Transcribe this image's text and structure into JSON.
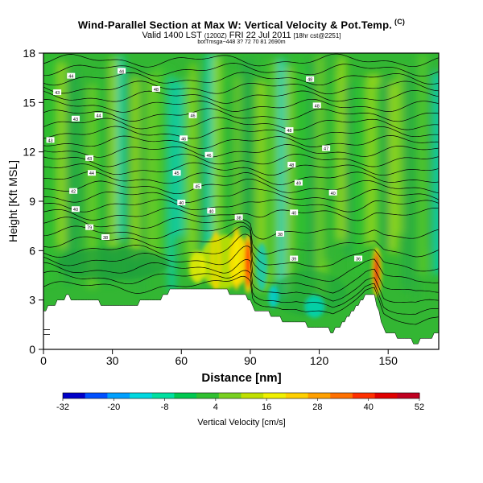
{
  "header": {
    "title": "Wind-Parallel Section at Max W: Vertical Velocity & Pot.Temp.",
    "copyright": "(C)",
    "valid_line": "Valid 1400 LST",
    "valid_small1": "(1200Z)",
    "valid_date": "FRI 22 Jul 2011",
    "valid_small2": "[18hr cst@2251]",
    "subline": "botTmsga~448 3? 72 70 81 2690m"
  },
  "chart_data": {
    "type": "heatmap",
    "title": "Wind-Parallel Section at Max W: Vertical Velocity & Pot.Temp.",
    "xlabel": "Distance [nm]",
    "ylabel": "Height [Kft MSL]",
    "xlim": [
      0,
      172
    ],
    "ylim": [
      0,
      18
    ],
    "x_ticks": [
      0,
      30,
      60,
      90,
      120,
      150
    ],
    "y_ticks": [
      0,
      3,
      6,
      9,
      12,
      15,
      18
    ],
    "colorbar": {
      "label": "Vertical Velocity [cm/s]",
      "tick_values": [
        -32,
        -20,
        -8,
        4,
        16,
        28,
        40,
        52
      ],
      "colors": [
        "#0000c8",
        "#0050ff",
        "#00a0ff",
        "#00d8e0",
        "#00e0a0",
        "#00c850",
        "#30c030",
        "#78d020",
        "#c0e000",
        "#f0f000",
        "#ffd000",
        "#ffa000",
        "#ff7000",
        "#ff3000",
        "#e00000",
        "#c00020"
      ]
    },
    "terrain_height": [
      [
        0,
        2.4
      ],
      [
        5,
        2.8
      ],
      [
        10,
        3.2
      ],
      [
        20,
        3.0
      ],
      [
        30,
        2.6
      ],
      [
        40,
        2.8
      ],
      [
        50,
        3.0
      ],
      [
        56,
        3.6
      ],
      [
        60,
        3.5
      ],
      [
        70,
        3.5
      ],
      [
        80,
        3.5
      ],
      [
        88,
        3.4
      ],
      [
        92,
        2.4
      ],
      [
        98,
        2.2
      ],
      [
        104,
        1.8
      ],
      [
        110,
        1.8
      ],
      [
        114,
        1.5
      ],
      [
        120,
        1.4
      ],
      [
        126,
        1.1
      ],
      [
        130,
        1.6
      ],
      [
        136,
        2.6
      ],
      [
        140,
        3.3
      ],
      [
        144,
        3.3
      ],
      [
        148,
        1.2
      ],
      [
        154,
        0.8
      ],
      [
        162,
        0.4
      ],
      [
        168,
        0.8
      ],
      [
        172,
        0.9
      ]
    ],
    "updraft_cores": [
      {
        "x": 89,
        "z_bottom": 3.4,
        "z_top": 7.0,
        "w": 40
      },
      {
        "x": 145,
        "z_bottom": 3.2,
        "z_top": 6.2,
        "w": 50
      },
      {
        "x": 84,
        "z_bottom": 3.6,
        "z_top": 7.4,
        "w": 16
      },
      {
        "x": 75,
        "z_bottom": 3.6,
        "z_top": 7.2,
        "w": 12
      }
    ],
    "contour_labels": [
      {
        "x": 34,
        "z": 16.9,
        "text": "44"
      },
      {
        "x": 12,
        "z": 16.6,
        "text": "44"
      },
      {
        "x": 6,
        "z": 15.6,
        "text": "43"
      },
      {
        "x": 49,
        "z": 15.8,
        "text": "48"
      },
      {
        "x": 24,
        "z": 14.2,
        "text": "44"
      },
      {
        "x": 14,
        "z": 14.0,
        "text": "43"
      },
      {
        "x": 65,
        "z": 14.2,
        "text": "46"
      },
      {
        "x": 116,
        "z": 16.4,
        "text": "48"
      },
      {
        "x": 119,
        "z": 14.8,
        "text": "48"
      },
      {
        "x": 3,
        "z": 12.7,
        "text": "43"
      },
      {
        "x": 61,
        "z": 12.8,
        "text": "46"
      },
      {
        "x": 107,
        "z": 13.3,
        "text": "48"
      },
      {
        "x": 123,
        "z": 12.2,
        "text": "47"
      },
      {
        "x": 20,
        "z": 11.6,
        "text": "43"
      },
      {
        "x": 72,
        "z": 11.8,
        "text": "46"
      },
      {
        "x": 108,
        "z": 11.2,
        "text": "48"
      },
      {
        "x": 21,
        "z": 10.7,
        "text": "44"
      },
      {
        "x": 58,
        "z": 10.7,
        "text": "45"
      },
      {
        "x": 111,
        "z": 10.1,
        "text": "49"
      },
      {
        "x": 67,
        "z": 9.9,
        "text": "45"
      },
      {
        "x": 13,
        "z": 9.6,
        "text": "42"
      },
      {
        "x": 126,
        "z": 9.5,
        "text": "40"
      },
      {
        "x": 60,
        "z": 8.9,
        "text": "40"
      },
      {
        "x": 14,
        "z": 8.5,
        "text": "40"
      },
      {
        "x": 73,
        "z": 8.4,
        "text": "40"
      },
      {
        "x": 109,
        "z": 8.3,
        "text": "40"
      },
      {
        "x": 85,
        "z": 8.0,
        "text": "38"
      },
      {
        "x": 20,
        "z": 7.4,
        "text": "79"
      },
      {
        "x": 27,
        "z": 6.8,
        "text": "38"
      },
      {
        "x": 103,
        "z": 7.0,
        "text": "38"
      },
      {
        "x": 109,
        "z": 5.5,
        "text": "39"
      },
      {
        "x": 137,
        "z": 5.5,
        "text": "36"
      }
    ]
  }
}
